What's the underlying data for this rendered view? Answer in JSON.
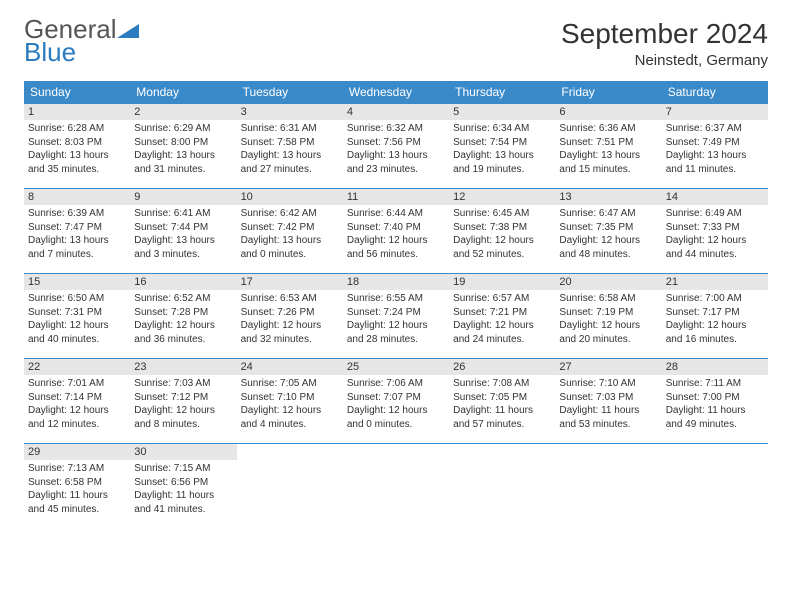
{
  "brand": {
    "part1": "General",
    "part2": "Blue"
  },
  "title": "September 2024",
  "location": "Neinstedt, Germany",
  "colors": {
    "header_bg": "#3a89c9",
    "header_text": "#ffffff",
    "daynum_bg": "#e6e6e6",
    "week_border": "#3a89c9",
    "text": "#333333"
  },
  "layout": {
    "columns": 7,
    "font_weekday": 12,
    "font_daynum": 11,
    "font_body": 10
  },
  "weekdays": [
    "Sunday",
    "Monday",
    "Tuesday",
    "Wednesday",
    "Thursday",
    "Friday",
    "Saturday"
  ],
  "days": [
    {
      "n": "1",
      "sunrise": "6:28 AM",
      "sunset": "8:03 PM",
      "daylight": "13 hours and 35 minutes."
    },
    {
      "n": "2",
      "sunrise": "6:29 AM",
      "sunset": "8:00 PM",
      "daylight": "13 hours and 31 minutes."
    },
    {
      "n": "3",
      "sunrise": "6:31 AM",
      "sunset": "7:58 PM",
      "daylight": "13 hours and 27 minutes."
    },
    {
      "n": "4",
      "sunrise": "6:32 AM",
      "sunset": "7:56 PM",
      "daylight": "13 hours and 23 minutes."
    },
    {
      "n": "5",
      "sunrise": "6:34 AM",
      "sunset": "7:54 PM",
      "daylight": "13 hours and 19 minutes."
    },
    {
      "n": "6",
      "sunrise": "6:36 AM",
      "sunset": "7:51 PM",
      "daylight": "13 hours and 15 minutes."
    },
    {
      "n": "7",
      "sunrise": "6:37 AM",
      "sunset": "7:49 PM",
      "daylight": "13 hours and 11 minutes."
    },
    {
      "n": "8",
      "sunrise": "6:39 AM",
      "sunset": "7:47 PM",
      "daylight": "13 hours and 7 minutes."
    },
    {
      "n": "9",
      "sunrise": "6:41 AM",
      "sunset": "7:44 PM",
      "daylight": "13 hours and 3 minutes."
    },
    {
      "n": "10",
      "sunrise": "6:42 AM",
      "sunset": "7:42 PM",
      "daylight": "13 hours and 0 minutes."
    },
    {
      "n": "11",
      "sunrise": "6:44 AM",
      "sunset": "7:40 PM",
      "daylight": "12 hours and 56 minutes."
    },
    {
      "n": "12",
      "sunrise": "6:45 AM",
      "sunset": "7:38 PM",
      "daylight": "12 hours and 52 minutes."
    },
    {
      "n": "13",
      "sunrise": "6:47 AM",
      "sunset": "7:35 PM",
      "daylight": "12 hours and 48 minutes."
    },
    {
      "n": "14",
      "sunrise": "6:49 AM",
      "sunset": "7:33 PM",
      "daylight": "12 hours and 44 minutes."
    },
    {
      "n": "15",
      "sunrise": "6:50 AM",
      "sunset": "7:31 PM",
      "daylight": "12 hours and 40 minutes."
    },
    {
      "n": "16",
      "sunrise": "6:52 AM",
      "sunset": "7:28 PM",
      "daylight": "12 hours and 36 minutes."
    },
    {
      "n": "17",
      "sunrise": "6:53 AM",
      "sunset": "7:26 PM",
      "daylight": "12 hours and 32 minutes."
    },
    {
      "n": "18",
      "sunrise": "6:55 AM",
      "sunset": "7:24 PM",
      "daylight": "12 hours and 28 minutes."
    },
    {
      "n": "19",
      "sunrise": "6:57 AM",
      "sunset": "7:21 PM",
      "daylight": "12 hours and 24 minutes."
    },
    {
      "n": "20",
      "sunrise": "6:58 AM",
      "sunset": "7:19 PM",
      "daylight": "12 hours and 20 minutes."
    },
    {
      "n": "21",
      "sunrise": "7:00 AM",
      "sunset": "7:17 PM",
      "daylight": "12 hours and 16 minutes."
    },
    {
      "n": "22",
      "sunrise": "7:01 AM",
      "sunset": "7:14 PM",
      "daylight": "12 hours and 12 minutes."
    },
    {
      "n": "23",
      "sunrise": "7:03 AM",
      "sunset": "7:12 PM",
      "daylight": "12 hours and 8 minutes."
    },
    {
      "n": "24",
      "sunrise": "7:05 AM",
      "sunset": "7:10 PM",
      "daylight": "12 hours and 4 minutes."
    },
    {
      "n": "25",
      "sunrise": "7:06 AM",
      "sunset": "7:07 PM",
      "daylight": "12 hours and 0 minutes."
    },
    {
      "n": "26",
      "sunrise": "7:08 AM",
      "sunset": "7:05 PM",
      "daylight": "11 hours and 57 minutes."
    },
    {
      "n": "27",
      "sunrise": "7:10 AM",
      "sunset": "7:03 PM",
      "daylight": "11 hours and 53 minutes."
    },
    {
      "n": "28",
      "sunrise": "7:11 AM",
      "sunset": "7:00 PM",
      "daylight": "11 hours and 49 minutes."
    },
    {
      "n": "29",
      "sunrise": "7:13 AM",
      "sunset": "6:58 PM",
      "daylight": "11 hours and 45 minutes."
    },
    {
      "n": "30",
      "sunrise": "7:15 AM",
      "sunset": "6:56 PM",
      "daylight": "11 hours and 41 minutes."
    }
  ],
  "labels": {
    "sunrise": "Sunrise:",
    "sunset": "Sunset:",
    "daylight": "Daylight:"
  },
  "start_offset": 0
}
